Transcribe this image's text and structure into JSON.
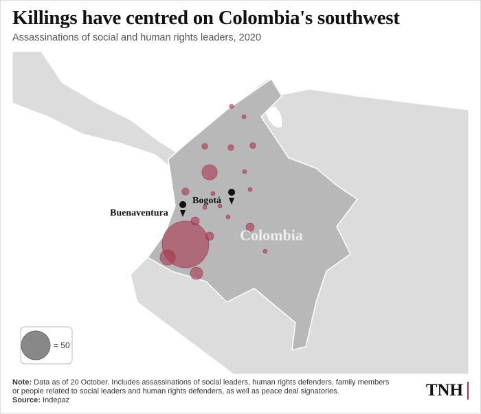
{
  "header": {
    "title": "Killings have centred on Colombia's southwest",
    "subtitle": "Assassinations of social and human rights leaders, 2020"
  },
  "map": {
    "country_label": "Colombia",
    "places": [
      {
        "name": "Bogotá"
      },
      {
        "name": "Buenaventura"
      }
    ],
    "bubbles": {
      "color": "#a8354f",
      "values": [
        131,
        14,
        14,
        9,
        4,
        4,
        4,
        3,
        2,
        2,
        2,
        1,
        1,
        1,
        1,
        1,
        1,
        1,
        1,
        1
      ]
    },
    "legend": {
      "value": 50,
      "label": "= 50"
    }
  },
  "footer": {
    "note_label": "Note:",
    "note": "Data as of 20 October. Includes assassinations of social leaders, human rights defenders, family members or people related to social leaders and human rights defenders, as well as peace deal signatories.",
    "source_label": "Source:",
    "source": "Indepaz",
    "logo": "TNH"
  }
}
